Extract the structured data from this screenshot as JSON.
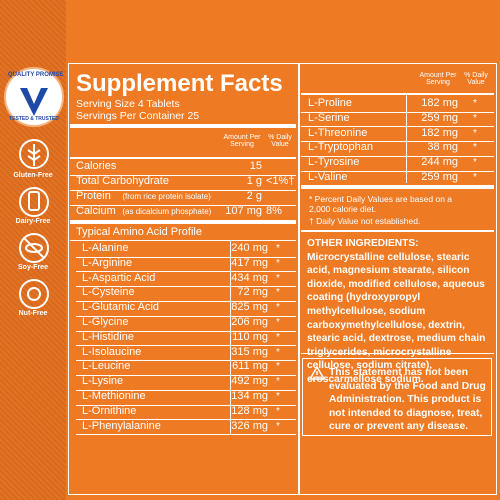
{
  "badge": {
    "top": "QUALITY PROMISE",
    "bottom": "TESTED & TRUSTED"
  },
  "icons": [
    "Gluten-Free",
    "Dairy-Free",
    "Soy-Free",
    "Nut-Free"
  ],
  "facts": {
    "title": "Supplement Facts",
    "serving_size": "Serving Size 4 Tablets",
    "servings": "Servings Per Container 25",
    "col_amount": "Amount Per Serving",
    "col_dv": "% Daily Value",
    "nutrients": [
      {
        "name": "Calories",
        "amount": "15"
      },
      {
        "name": "Total Carbohydrate",
        "amount": "1 g",
        "dv": "<1%†"
      },
      {
        "name": "Protein",
        "note": "(from rice protein isolate)",
        "amount": "2 g"
      },
      {
        "name": "Calcium",
        "note": "(as dicalcium phosphate)",
        "amount": "107 mg",
        "dv": "8%"
      }
    ],
    "profile_title": "Typical Amino Acid Profile",
    "amino_acids": [
      {
        "name": "L-Alanine",
        "amount": "240 mg",
        "dv": "*"
      },
      {
        "name": "L-Arginine",
        "amount": "417 mg",
        "dv": "*"
      },
      {
        "name": "L-Aspartic Acid",
        "amount": "434 mg",
        "dv": "*"
      },
      {
        "name": "L-Cysteine",
        "amount": "72 mg",
        "dv": "*"
      },
      {
        "name": "L-Glutamic Acid",
        "amount": "825 mg",
        "dv": "*"
      },
      {
        "name": "L-Glycine",
        "amount": "206 mg",
        "dv": "*"
      },
      {
        "name": "L-Histidine",
        "amount": "110 mg",
        "dv": "*"
      },
      {
        "name": "L-Isolaucine",
        "amount": "315 mg",
        "dv": "*"
      },
      {
        "name": "L-Leucine",
        "amount": "611 mg",
        "dv": "*"
      },
      {
        "name": "L-Lysine",
        "amount": "492 mg",
        "dv": "*"
      },
      {
        "name": "L-Methionine",
        "amount": "134 mg",
        "dv": "*"
      },
      {
        "name": "L-Ornithine",
        "amount": "128 mg",
        "dv": "*"
      },
      {
        "name": "L-Phenylalanine",
        "amount": "326 mg",
        "dv": "*"
      }
    ]
  },
  "right": {
    "col_amount": "Amount Per Serving",
    "col_dv": "% Daily Value",
    "amino_acids": [
      {
        "name": "L-Proline",
        "amount": "182 mg",
        "dv": "*"
      },
      {
        "name": "L-Serine",
        "amount": "259 mg",
        "dv": "*"
      },
      {
        "name": "L-Threonine",
        "amount": "182 mg",
        "dv": "*"
      },
      {
        "name": "L-Tryptophan",
        "amount": "38 mg",
        "dv": "*"
      },
      {
        "name": "L-Tyrosine",
        "amount": "244 mg",
        "dv": "*"
      },
      {
        "name": "L-Valine",
        "amount": "259 mg",
        "dv": "*"
      }
    ],
    "footnotes": [
      "* Percent Daily Values are based on a 2,000 calorie diet.",
      "† Daily Value not established."
    ],
    "other_label": "OTHER INGREDIENTS:",
    "other_text": "Microcrystalline cellulose, stearic acid, magnesium stearate, silicon dioxide, modified cellulose, aqueous coating (hydroxypropyl methylcellulose, sodium carboxymethylcellulose, dextrin, stearic acid, dextrose, medium chain triglycerides, microcrystalline cellulose, sodium citrate), croscarmellose sodium.",
    "statement": "This statement has not been evaluated by the Food and Drug Administration. This product is not intended to diagnose, treat, cure or prevent any disease."
  }
}
